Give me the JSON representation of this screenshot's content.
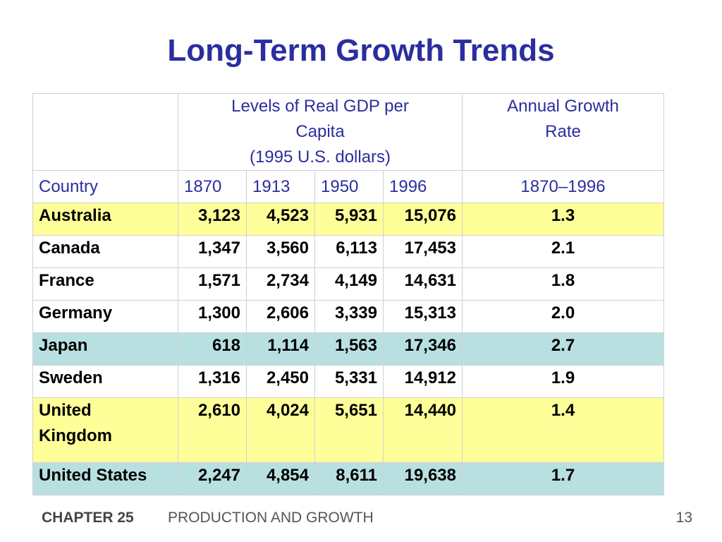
{
  "title": "Long-Term Growth Trends",
  "table": {
    "group_headers": {
      "levels_line1": "Levels of Real GDP per",
      "levels_line2": "Capita",
      "levels_line3": "(1995 U.S. dollars)",
      "growth_line1": "Annual Growth",
      "growth_line2": "Rate"
    },
    "columns": {
      "country": "Country",
      "y1870": "1870",
      "y1913": "1913",
      "y1950": "1950",
      "y1996": "1996",
      "range": "1870–1996"
    },
    "row_colors": {
      "yellow": "#ffff99",
      "blue": "#b9e0e1",
      "white": "#ffffff"
    },
    "rows": [
      {
        "country": "Australia",
        "v1870": "3,123",
        "v1913": "4,523",
        "v1950": "5,931",
        "v1996": "15,076",
        "rate": "1.3"
      },
      {
        "country": "Canada",
        "v1870": "1,347",
        "v1913": "3,560",
        "v1950": "6,113",
        "v1996": "17,453",
        "rate": "2.1"
      },
      {
        "country": "France",
        "v1870": "1,571",
        "v1913": "2,734",
        "v1950": "4,149",
        "v1996": "14,631",
        "rate": "1.8"
      },
      {
        "country": "Germany",
        "v1870": "1,300",
        "v1913": "2,606",
        "v1950": "3,339",
        "v1996": "15,313",
        "rate": "2.0"
      },
      {
        "country": "Japan",
        "v1870": "618",
        "v1913": "1,114",
        "v1950": "1,563",
        "v1996": "17,346",
        "rate": "2.7"
      },
      {
        "country": "Sweden",
        "v1870": "1,316",
        "v1913": "2,450",
        "v1950": "5,331",
        "v1996": "14,912",
        "rate": "1.9"
      },
      {
        "country_line1": "United",
        "country_line2": "Kingdom",
        "v1870": "2,610",
        "v1913": "4,024",
        "v1950": "5,651",
        "v1996": "14,440",
        "rate": "1.4"
      },
      {
        "country": "United States",
        "v1870": "2,247",
        "v1913": "4,854",
        "v1950": "8,611",
        "v1996": "19,638",
        "rate": "1.7"
      }
    ]
  },
  "footer": {
    "chapter": "CHAPTER 25",
    "chapter_title": "PRODUCTION AND GROWTH",
    "page": "13"
  }
}
